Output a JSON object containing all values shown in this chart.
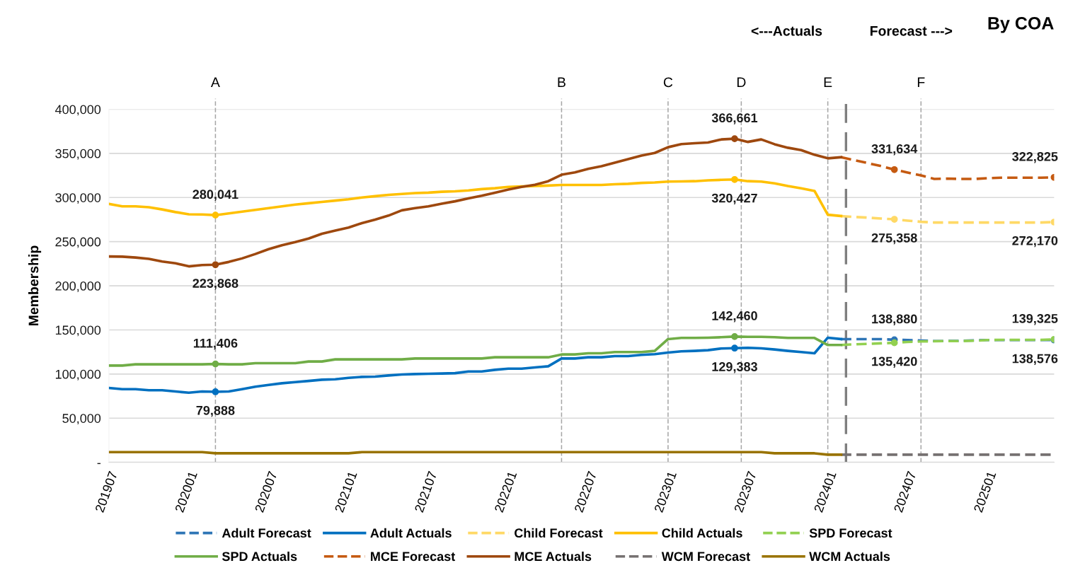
{
  "chart_data": {
    "type": "line",
    "title": "By COA",
    "ylabel": "Membership",
    "annotations": [
      "<---Actuals",
      "Forecast --->"
    ],
    "x": [
      "2019-07",
      "2019-08",
      "2019-09",
      "2019-10",
      "2019-11",
      "2019-12",
      "2020-01",
      "2020-02",
      "2020-03",
      "2020-04",
      "2020-05",
      "2020-06",
      "2020-07",
      "2020-08",
      "2020-09",
      "2020-10",
      "2020-11",
      "2020-12",
      "2021-01",
      "2021-02",
      "2021-03",
      "2021-04",
      "2021-05",
      "2021-06",
      "2021-07",
      "2021-08",
      "2021-09",
      "2021-10",
      "2021-11",
      "2021-12",
      "2022-01",
      "2022-02",
      "2022-03",
      "2022-04",
      "2022-05",
      "2022-06",
      "2022-07",
      "2022-08",
      "2022-09",
      "2022-10",
      "2022-11",
      "2022-12",
      "2023-01",
      "2023-02",
      "2023-03",
      "2023-04",
      "2023-05",
      "2023-06",
      "2023-07",
      "2023-08",
      "2023-09",
      "2023-10",
      "2023-11",
      "2023-12",
      "2024-01",
      "2024-02",
      "2024-03",
      "2024-04",
      "2024-05",
      "2024-06",
      "2024-07",
      "2024-08",
      "2024-09",
      "2024-10",
      "2024-11",
      "2024-12",
      "2025-01",
      "2025-02",
      "2025-03",
      "2025-04",
      "2025-05",
      "2025-06"
    ],
    "xlim": [
      "2019-07",
      "2025-06"
    ],
    "xticks": [
      {
        "value": "2019-07",
        "label": "201907"
      },
      {
        "value": "2020-01",
        "label": "202001"
      },
      {
        "value": "2020-07",
        "label": "202007"
      },
      {
        "value": "2021-01",
        "label": "202101"
      },
      {
        "value": "2021-07",
        "label": "202107"
      },
      {
        "value": "2022-01",
        "label": "202201"
      },
      {
        "value": "2022-07",
        "label": "202207"
      },
      {
        "value": "2023-01",
        "label": "202301"
      },
      {
        "value": "2023-07",
        "label": "202307"
      },
      {
        "value": "2024-01",
        "label": "202401"
      },
      {
        "value": "2024-07",
        "label": "202407"
      },
      {
        "value": "2025-01",
        "label": "202501"
      }
    ],
    "ylim": [
      0,
      400000
    ],
    "yticks": [
      {
        "value": 0,
        "label": "-"
      },
      {
        "value": 50000,
        "label": "50,000"
      },
      {
        "value": 100000,
        "label": "100,000"
      },
      {
        "value": 150000,
        "label": "150,000"
      },
      {
        "value": 200000,
        "label": "200,000"
      },
      {
        "value": 250000,
        "label": "250,000"
      },
      {
        "value": 300000,
        "label": "300,000"
      },
      {
        "value": 350000,
        "label": "350,000"
      },
      {
        "value": 400000,
        "label": "400,000"
      }
    ],
    "grid": "y",
    "legend": "bottom",
    "ref_lines": [
      {
        "axis": "x",
        "value": "2020-03",
        "label": "A",
        "color": "#a6a6a6",
        "line_style": "dashed"
      },
      {
        "axis": "x",
        "value": "2022-05",
        "label": "B",
        "color": "#a6a6a6",
        "line_style": "dashed"
      },
      {
        "axis": "x",
        "value": "2023-01",
        "label": "C",
        "color": "#a6a6a6",
        "line_style": "dashed"
      },
      {
        "axis": "x",
        "value": "2023-06-16",
        "label": "D",
        "color": "#a6a6a6",
        "line_style": "dashed"
      },
      {
        "axis": "x",
        "value": "2024-01",
        "label": "E",
        "color": "#a6a6a6",
        "line_style": "dashed"
      },
      {
        "axis": "x",
        "value": "2024-08",
        "label": "F",
        "color": "#a6a6a6",
        "line_style": "dashed"
      },
      {
        "axis": "x",
        "value": "2024-02-12",
        "label": null,
        "color": "#7f7f7f",
        "line_style": "dashed"
      }
    ],
    "series": [
      {
        "name": "Adult Forecast",
        "color": "#2e75b6",
        "line_style": "dashed",
        "values": [
          null,
          null,
          null,
          null,
          null,
          null,
          null,
          null,
          null,
          null,
          null,
          null,
          null,
          null,
          null,
          null,
          null,
          null,
          null,
          null,
          null,
          null,
          null,
          null,
          null,
          null,
          null,
          null,
          null,
          null,
          null,
          null,
          null,
          null,
          null,
          null,
          null,
          null,
          null,
          null,
          null,
          null,
          null,
          null,
          null,
          null,
          null,
          null,
          null,
          null,
          null,
          null,
          null,
          null,
          null,
          139600,
          139600,
          139600,
          139600,
          138880,
          138500,
          138000,
          137400,
          137400,
          137600,
          138200,
          138500,
          138500,
          138500,
          138500,
          138500,
          138576
        ],
        "value_labels": [
          null,
          null,
          null,
          null,
          null,
          null,
          null,
          null,
          null,
          null,
          null,
          null,
          null,
          null,
          null,
          null,
          null,
          null,
          null,
          null,
          null,
          null,
          null,
          null,
          null,
          null,
          null,
          null,
          null,
          null,
          null,
          null,
          null,
          null,
          null,
          null,
          null,
          null,
          null,
          null,
          null,
          null,
          null,
          null,
          null,
          null,
          null,
          null,
          null,
          null,
          null,
          null,
          null,
          null,
          null,
          null,
          null,
          null,
          null,
          "138,880",
          null,
          null,
          null,
          null,
          null,
          null,
          null,
          null,
          null,
          null,
          null,
          "138,576"
        ]
      },
      {
        "name": "Adult Actuals",
        "color": "#0070c0",
        "line_style": "solid",
        "values": [
          84200,
          82900,
          82900,
          81600,
          81600,
          80200,
          78900,
          80200,
          79888,
          80200,
          82900,
          85600,
          87700,
          89600,
          90900,
          92200,
          93600,
          94100,
          95700,
          96800,
          97100,
          98400,
          99500,
          100000,
          100300,
          100600,
          101000,
          102900,
          102900,
          104800,
          106100,
          106100,
          107500,
          108800,
          117600,
          117600,
          119000,
          119000,
          120300,
          120300,
          121700,
          122500,
          124300,
          125700,
          126200,
          127000,
          128900,
          129383,
          129700,
          129100,
          127800,
          126200,
          124900,
          123500,
          141200,
          139600,
          null,
          null,
          null,
          null,
          null,
          null,
          null,
          null,
          null,
          null,
          null,
          null,
          null,
          null,
          null,
          null
        ],
        "value_labels": [
          null,
          null,
          null,
          null,
          null,
          null,
          null,
          null,
          "79,888",
          null,
          null,
          null,
          null,
          null,
          null,
          null,
          null,
          null,
          null,
          null,
          null,
          null,
          null,
          null,
          null,
          null,
          null,
          null,
          null,
          null,
          null,
          null,
          null,
          null,
          null,
          null,
          null,
          null,
          null,
          null,
          null,
          null,
          null,
          null,
          null,
          null,
          null,
          "129,383",
          null,
          null,
          null,
          null,
          null,
          null,
          null,
          null,
          null,
          null,
          null,
          null,
          null,
          null,
          null,
          null,
          null,
          null,
          null,
          null,
          null,
          null,
          null,
          null
        ]
      },
      {
        "name": "Child Forecast",
        "color": "#ffd966",
        "line_style": "dashed",
        "values": [
          null,
          null,
          null,
          null,
          null,
          null,
          null,
          null,
          null,
          null,
          null,
          null,
          null,
          null,
          null,
          null,
          null,
          null,
          null,
          null,
          null,
          null,
          null,
          null,
          null,
          null,
          null,
          null,
          null,
          null,
          null,
          null,
          null,
          null,
          null,
          null,
          null,
          null,
          null,
          null,
          null,
          null,
          null,
          null,
          null,
          null,
          null,
          null,
          null,
          null,
          null,
          null,
          null,
          null,
          null,
          279000,
          278000,
          277200,
          276200,
          275358,
          273800,
          272500,
          271700,
          271700,
          271700,
          271700,
          271700,
          271700,
          271700,
          271700,
          271700,
          272170
        ],
        "value_labels": [
          null,
          null,
          null,
          null,
          null,
          null,
          null,
          null,
          null,
          null,
          null,
          null,
          null,
          null,
          null,
          null,
          null,
          null,
          null,
          null,
          null,
          null,
          null,
          null,
          null,
          null,
          null,
          null,
          null,
          null,
          null,
          null,
          null,
          null,
          null,
          null,
          null,
          null,
          null,
          null,
          null,
          null,
          null,
          null,
          null,
          null,
          null,
          null,
          null,
          null,
          null,
          null,
          null,
          null,
          null,
          null,
          null,
          null,
          null,
          "275,358",
          null,
          null,
          null,
          null,
          null,
          null,
          null,
          null,
          null,
          null,
          null,
          "272,170"
        ]
      },
      {
        "name": "Child Actuals",
        "color": "#ffc000",
        "line_style": "solid",
        "values": [
          292800,
          290000,
          290000,
          289000,
          286500,
          283500,
          281000,
          280800,
          280041,
          282000,
          284000,
          286000,
          288000,
          290000,
          292000,
          293500,
          295000,
          296500,
          298000,
          300000,
          301500,
          303000,
          304000,
          305000,
          305500,
          306500,
          307000,
          308000,
          309500,
          310500,
          312000,
          312500,
          313000,
          313500,
          314200,
          314200,
          314200,
          314200,
          315000,
          315500,
          316500,
          317000,
          318000,
          318200,
          318500,
          319500,
          320000,
          320427,
          318500,
          318000,
          316000,
          313000,
          310500,
          307500,
          280500,
          279000,
          null,
          null,
          null,
          null,
          null,
          null,
          null,
          null,
          null,
          null,
          null,
          null,
          null,
          null,
          null,
          null
        ],
        "value_labels": [
          null,
          null,
          null,
          null,
          null,
          null,
          null,
          null,
          "280,041",
          null,
          null,
          null,
          null,
          null,
          null,
          null,
          null,
          null,
          null,
          null,
          null,
          null,
          null,
          null,
          null,
          null,
          null,
          null,
          null,
          null,
          null,
          null,
          null,
          null,
          null,
          null,
          null,
          null,
          null,
          null,
          null,
          null,
          null,
          null,
          null,
          null,
          null,
          "320,427",
          null,
          null,
          null,
          null,
          null,
          null,
          null,
          null,
          null,
          null,
          null,
          null,
          null,
          null,
          null,
          null,
          null,
          null,
          null,
          null,
          null,
          null,
          null,
          null
        ]
      },
      {
        "name": "SPD Forecast",
        "color": "#92d050",
        "line_style": "dashed",
        "values": [
          null,
          null,
          null,
          null,
          null,
          null,
          null,
          null,
          null,
          null,
          null,
          null,
          null,
          null,
          null,
          null,
          null,
          null,
          null,
          null,
          null,
          null,
          null,
          null,
          null,
          null,
          null,
          null,
          null,
          null,
          null,
          null,
          null,
          null,
          null,
          null,
          null,
          null,
          null,
          null,
          null,
          null,
          null,
          null,
          null,
          null,
          null,
          null,
          null,
          null,
          null,
          null,
          null,
          null,
          null,
          132900,
          133700,
          134200,
          134800,
          135420,
          136400,
          136900,
          137200,
          137400,
          137400,
          137700,
          138500,
          138800,
          138800,
          138800,
          138800,
          139325
        ],
        "value_labels": [
          null,
          null,
          null,
          null,
          null,
          null,
          null,
          null,
          null,
          null,
          null,
          null,
          null,
          null,
          null,
          null,
          null,
          null,
          null,
          null,
          null,
          null,
          null,
          null,
          null,
          null,
          null,
          null,
          null,
          null,
          null,
          null,
          null,
          null,
          null,
          null,
          null,
          null,
          null,
          null,
          null,
          null,
          null,
          null,
          null,
          null,
          null,
          null,
          null,
          null,
          null,
          null,
          null,
          null,
          null,
          null,
          null,
          null,
          null,
          "135,420",
          null,
          null,
          null,
          null,
          null,
          null,
          null,
          null,
          null,
          null,
          null,
          "139,325"
        ]
      },
      {
        "name": "SPD Actuals",
        "color": "#70ad47",
        "line_style": "solid",
        "values": [
          109600,
          109600,
          111000,
          111000,
          111000,
          111000,
          111000,
          111000,
          111406,
          111000,
          111000,
          112300,
          112300,
          112300,
          112300,
          114200,
          114200,
          116600,
          116600,
          116600,
          116600,
          116600,
          116600,
          117600,
          117600,
          117600,
          117600,
          117600,
          117600,
          119000,
          119000,
          119000,
          119000,
          119000,
          122200,
          122200,
          123500,
          123500,
          124900,
          124900,
          124900,
          126200,
          139600,
          140900,
          140900,
          141200,
          141700,
          142460,
          142200,
          142200,
          141700,
          140900,
          140900,
          140900,
          132900,
          132900,
          null,
          null,
          null,
          null,
          null,
          null,
          null,
          null,
          null,
          null,
          null,
          null,
          null,
          null,
          null,
          null
        ],
        "value_labels": [
          null,
          null,
          null,
          null,
          null,
          null,
          null,
          null,
          "111,406",
          null,
          null,
          null,
          null,
          null,
          null,
          null,
          null,
          null,
          null,
          null,
          null,
          null,
          null,
          null,
          null,
          null,
          null,
          null,
          null,
          null,
          null,
          null,
          null,
          null,
          null,
          null,
          null,
          null,
          null,
          null,
          null,
          null,
          null,
          null,
          null,
          null,
          null,
          "142,460",
          null,
          null,
          null,
          null,
          null,
          null,
          null,
          null,
          null,
          null,
          null,
          null,
          null,
          null,
          null,
          null,
          null,
          null,
          null,
          null,
          null,
          null,
          null,
          null
        ]
      },
      {
        "name": "MCE Forecast",
        "color": "#c55a11",
        "line_style": "dashed",
        "values": [
          null,
          null,
          null,
          null,
          null,
          null,
          null,
          null,
          null,
          null,
          null,
          null,
          null,
          null,
          null,
          null,
          null,
          null,
          null,
          null,
          null,
          null,
          null,
          null,
          null,
          null,
          null,
          null,
          null,
          null,
          null,
          null,
          null,
          null,
          null,
          null,
          null,
          null,
          null,
          null,
          null,
          null,
          null,
          null,
          null,
          null,
          null,
          null,
          null,
          null,
          null,
          null,
          null,
          null,
          null,
          345700,
          342200,
          339000,
          335600,
          331634,
          328300,
          325000,
          321100,
          321400,
          321000,
          321000,
          321900,
          322500,
          322500,
          322500,
          322500,
          322825
        ],
        "value_labels": [
          null,
          null,
          null,
          null,
          null,
          null,
          null,
          null,
          null,
          null,
          null,
          null,
          null,
          null,
          null,
          null,
          null,
          null,
          null,
          null,
          null,
          null,
          null,
          null,
          null,
          null,
          null,
          null,
          null,
          null,
          null,
          null,
          null,
          null,
          null,
          null,
          null,
          null,
          null,
          null,
          null,
          null,
          null,
          null,
          null,
          null,
          null,
          null,
          null,
          null,
          null,
          null,
          null,
          null,
          null,
          null,
          null,
          null,
          null,
          "331,634",
          null,
          null,
          null,
          null,
          null,
          null,
          null,
          null,
          null,
          null,
          null,
          "322,825"
        ]
      },
      {
        "name": "MCE Actuals",
        "color": "#9e480e",
        "line_style": "solid",
        "values": [
          233200,
          233000,
          232000,
          230500,
          227500,
          225500,
          222000,
          223500,
          223868,
          227000,
          231000,
          236000,
          241500,
          246000,
          249500,
          253500,
          259000,
          262500,
          266000,
          271000,
          275000,
          279500,
          285500,
          288000,
          290000,
          293000,
          295700,
          299000,
          302000,
          305500,
          309000,
          312000,
          314500,
          318500,
          325800,
          328500,
          332500,
          335500,
          339500,
          343500,
          347500,
          350500,
          357000,
          360500,
          361500,
          362300,
          365800,
          366661,
          363000,
          365800,
          360400,
          356400,
          353700,
          348400,
          344400,
          345700,
          null,
          null,
          null,
          null,
          null,
          null,
          null,
          null,
          null,
          null,
          null,
          null,
          null,
          null,
          null,
          null
        ],
        "value_labels": [
          null,
          null,
          null,
          null,
          null,
          null,
          null,
          null,
          "223,868",
          null,
          null,
          null,
          null,
          null,
          null,
          null,
          null,
          null,
          null,
          null,
          null,
          null,
          null,
          null,
          null,
          null,
          null,
          null,
          null,
          null,
          null,
          null,
          null,
          null,
          null,
          null,
          null,
          null,
          null,
          null,
          null,
          null,
          null,
          null,
          null,
          null,
          null,
          "366,661",
          null,
          null,
          null,
          null,
          null,
          null,
          null,
          null,
          null,
          null,
          null,
          null,
          null,
          null,
          null,
          null,
          null,
          null,
          null,
          null,
          null,
          null,
          null,
          null
        ]
      },
      {
        "name": "WCM Forecast",
        "color": "#767171",
        "line_style": "dashed",
        "values": [
          null,
          null,
          null,
          null,
          null,
          null,
          null,
          null,
          null,
          null,
          null,
          null,
          null,
          null,
          null,
          null,
          null,
          null,
          null,
          null,
          null,
          null,
          null,
          null,
          null,
          null,
          null,
          null,
          null,
          null,
          null,
          null,
          null,
          null,
          null,
          null,
          null,
          null,
          null,
          null,
          null,
          null,
          null,
          null,
          null,
          null,
          null,
          null,
          null,
          null,
          null,
          null,
          null,
          null,
          null,
          8600,
          8600,
          8600,
          8600,
          8600,
          8600,
          8600,
          8600,
          8600,
          8600,
          8600,
          8600,
          8600,
          8600,
          8600,
          8600,
          8600
        ]
      },
      {
        "name": "WCM Actuals",
        "color": "#997300",
        "line_style": "solid",
        "values": [
          11500,
          11500,
          11500,
          11500,
          11500,
          11500,
          11500,
          11500,
          10200,
          10200,
          10200,
          10200,
          10200,
          10200,
          10200,
          10200,
          10200,
          10200,
          10200,
          11500,
          11500,
          11500,
          11500,
          11500,
          11500,
          11500,
          11500,
          11500,
          11500,
          11500,
          11500,
          11500,
          11500,
          11500,
          11500,
          11500,
          11500,
          11500,
          11500,
          11500,
          11500,
          11500,
          11500,
          11500,
          11500,
          11500,
          11500,
          11500,
          11500,
          11500,
          10200,
          10200,
          10200,
          10200,
          8600,
          8600,
          null,
          null,
          null,
          null,
          null,
          null,
          null,
          null,
          null,
          null,
          null,
          null,
          null,
          null,
          null,
          null
        ]
      }
    ]
  }
}
